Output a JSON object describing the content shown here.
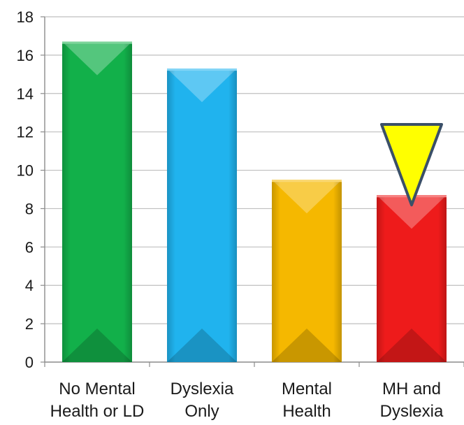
{
  "chart_data": {
    "type": "bar",
    "categories": [
      [
        "No Mental",
        "Health or LD"
      ],
      [
        "Dyslexia",
        "Only"
      ],
      [
        "Mental",
        "Health"
      ],
      [
        "MH and",
        "Dyslexia"
      ]
    ],
    "values": [
      16.7,
      15.3,
      9.5,
      8.7
    ],
    "bar_colors": [
      "#12b04a",
      "#20b3ee",
      "#f5b800",
      "#ee1b1b"
    ],
    "title": "",
    "xlabel": "",
    "ylabel": "",
    "ylim": [
      0,
      18
    ],
    "yticks": [
      0,
      2,
      4,
      6,
      8,
      10,
      12,
      14,
      16,
      18
    ],
    "grid": "horizontal",
    "annotations": [
      {
        "type": "marker",
        "shape": "triangle-down",
        "target_category": 3,
        "color": "#ffff00",
        "outline": "#3b5068"
      }
    ]
  }
}
